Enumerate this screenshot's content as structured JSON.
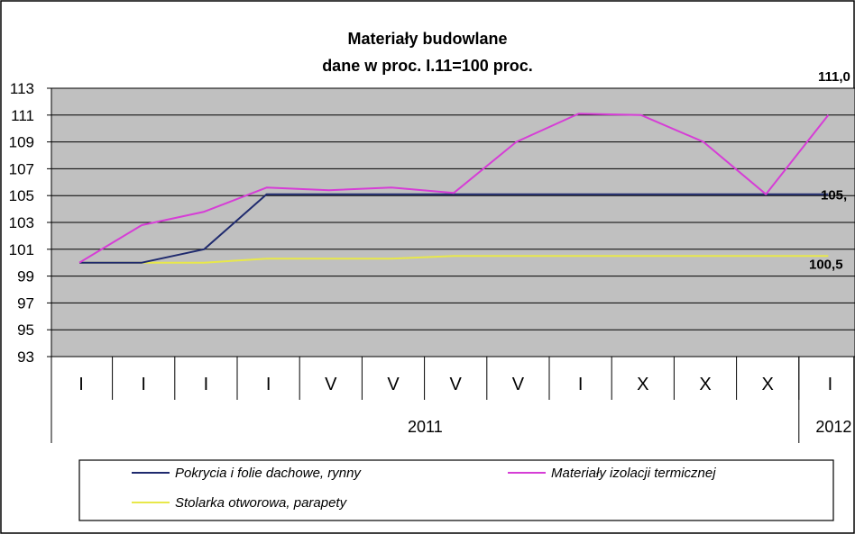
{
  "chart_data": {
    "type": "line",
    "title": "Materiały budowlane",
    "subtitle": "dane w proc. I.11=100 proc.",
    "ylim": [
      93,
      113
    ],
    "yticks": [
      113,
      111,
      109,
      107,
      105,
      103,
      101,
      99,
      97,
      95,
      93
    ],
    "grid": true,
    "categories": [
      "I",
      "I",
      "I",
      "I",
      "V",
      "V",
      "V",
      "V",
      "I",
      "X",
      "X",
      "X",
      "I"
    ],
    "year_groups": [
      {
        "label": "2011",
        "span": 12
      },
      {
        "label": "2012",
        "span": 1
      }
    ],
    "series": [
      {
        "name": "Pokrycia i folie dachowe, rynny",
        "color": "#1f2a6e",
        "values": [
          100.0,
          100.0,
          101.0,
          105.1,
          105.1,
          105.1,
          105.1,
          105.1,
          105.1,
          105.1,
          105.1,
          105.1,
          105.1
        ],
        "end_label": "105,"
      },
      {
        "name": "Materiały izolacji termicznej",
        "color": "#d63dd6",
        "values": [
          100.0,
          102.8,
          103.8,
          105.6,
          105.4,
          105.6,
          105.2,
          109.0,
          111.1,
          111.0,
          109.0,
          105.1,
          111.0
        ],
        "end_label": "111,0"
      },
      {
        "name": "Stolarka otworowa, parapety",
        "color": "#e8e84a",
        "values": [
          100.0,
          100.0,
          100.0,
          100.3,
          100.3,
          100.3,
          100.5,
          100.5,
          100.5,
          100.5,
          100.5,
          100.5,
          100.5
        ],
        "end_label": "100,5"
      }
    ],
    "legend_position": "bottom"
  }
}
